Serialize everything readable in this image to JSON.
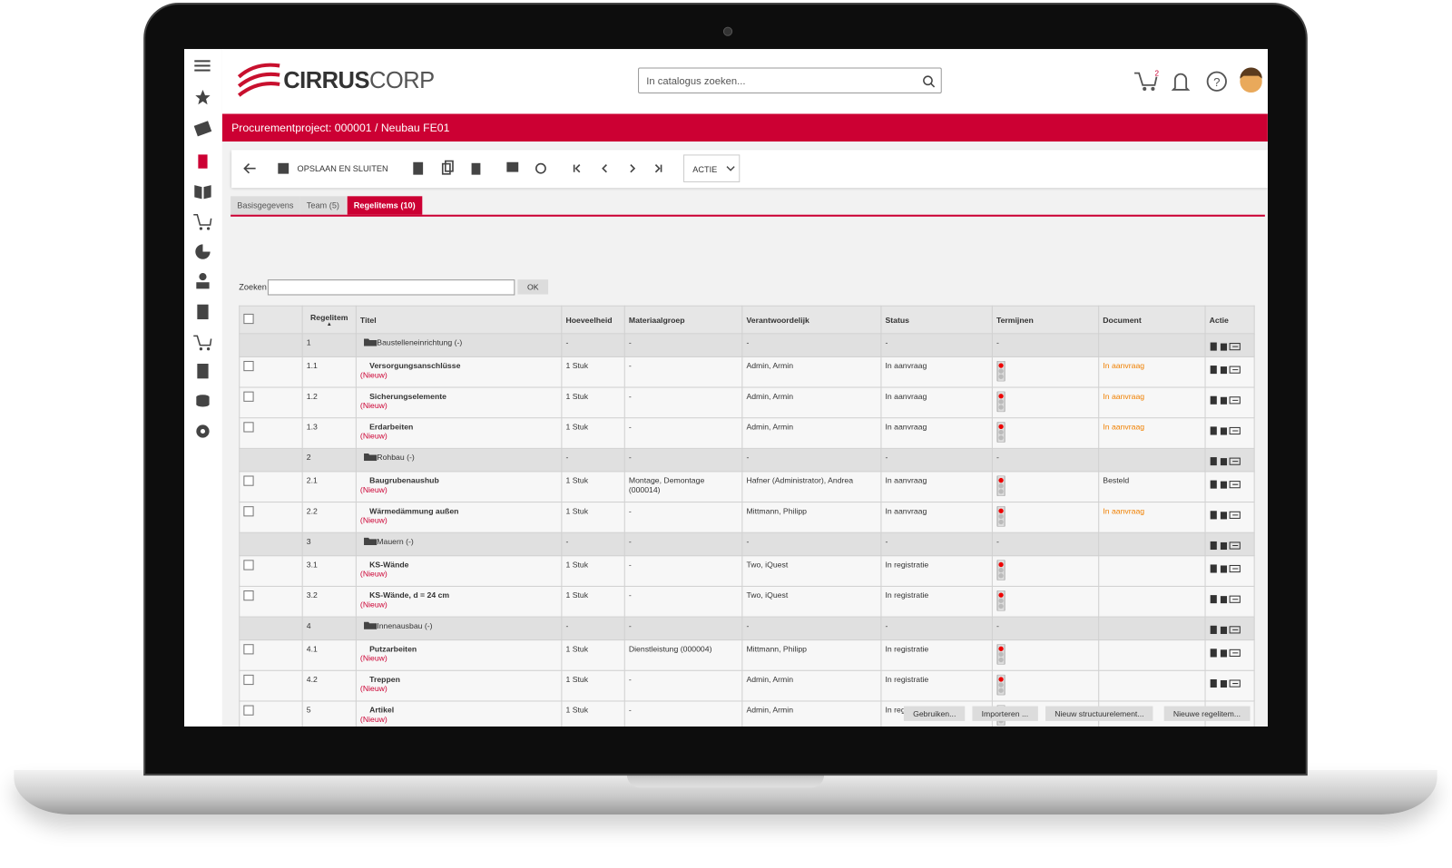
{
  "header": {
    "logo_main": "CIRRUS",
    "logo_sub": "CORP",
    "search_placeholder": "In catalogus zoeken...",
    "cart_count": "2"
  },
  "breadcrumb": "Procurementproject: 000001 / Neubau FE01",
  "toolbar": {
    "save": "OPSLAAN EN SLUITEN",
    "action": "ACTIE"
  },
  "tabs": [
    "Basisgegevens",
    "Team (5)",
    "Regelitems (10)"
  ],
  "search": {
    "label": "Zoeken",
    "button": "OK"
  },
  "table": {
    "columns": [
      "Regelitem",
      "Titel",
      "Hoeveelheid",
      "Materiaalgroep",
      "Verantwoordelijk",
      "Status",
      "Termijnen",
      "Document",
      "Actie"
    ],
    "rows": [
      {
        "id": "1",
        "title": "Baustelleneinrichtung (-)",
        "qty": "-",
        "group": "-",
        "resp": "-",
        "status": "-",
        "term": "-"
      },
      {
        "id": "1.1",
        "title": "Versorgungsanschlüsse",
        "note": "(Nieuw)",
        "qty": "1 Stuk",
        "group": "-",
        "resp": "Admin, Armin",
        "status": "In aanvraag",
        "doc": "In aanvraag"
      },
      {
        "id": "1.2",
        "title": "Sicherungselemente",
        "note": "(Nieuw)",
        "qty": "1 Stuk",
        "group": "-",
        "resp": "Admin, Armin",
        "status": "In aanvraag",
        "doc": "In aanvraag"
      },
      {
        "id": "1.3",
        "title": "Erdarbeiten",
        "note": "(Nieuw)",
        "qty": "1 Stuk",
        "group": "-",
        "resp": "Admin, Armin",
        "status": "In aanvraag",
        "doc": "In aanvraag"
      },
      {
        "id": "2",
        "title": "Rohbau (-)",
        "qty": "-",
        "group": "-",
        "resp": "-",
        "status": "-",
        "term": "-"
      },
      {
        "id": "2.1",
        "title": "Baugrubenaushub",
        "note": "(Nieuw)",
        "qty": "1 Stuk",
        "group": "Montage, Demontage (000014)",
        "resp": "Hafner (Administrator), Andrea",
        "status": "In aanvraag",
        "doc": "Besteld"
      },
      {
        "id": "2.2",
        "title": "Wärmedämmung außen",
        "note": "(Nieuw)",
        "qty": "1 Stuk",
        "group": "-",
        "resp": "Mittmann, Philipp",
        "status": "In aanvraag",
        "doc": "In aanvraag"
      },
      {
        "id": "3",
        "title": "Mauern (-)",
        "qty": "-",
        "group": "-",
        "resp": "-",
        "status": "-",
        "term": "-"
      },
      {
        "id": "3.1",
        "title": "KS-Wände",
        "note": "(Nieuw)",
        "qty": "1 Stuk",
        "group": "-",
        "resp": "Two, iQuest",
        "status": "In registratie"
      },
      {
        "id": "3.2",
        "title": "KS-Wände, d = 24 cm",
        "note": "(Nieuw)",
        "qty": "1 Stuk",
        "group": "-",
        "resp": "Two, iQuest",
        "status": "In registratie"
      },
      {
        "id": "4",
        "title": "Innenausbau (-)",
        "qty": "-",
        "group": "-",
        "resp": "-",
        "status": "-",
        "term": "-"
      },
      {
        "id": "4.1",
        "title": "Putzarbeiten",
        "note": "(Nieuw)",
        "qty": "1 Stuk",
        "group": "Dienstleistung (000004)",
        "resp": "Mittmann, Philipp",
        "status": "In registratie"
      },
      {
        "id": "4.2",
        "title": "Treppen",
        "note": "(Nieuw)",
        "qty": "1 Stuk",
        "group": "-",
        "resp": "Admin, Armin",
        "status": "In registratie"
      },
      {
        "id": "5",
        "title": "Artikel",
        "note": "(Nieuw)",
        "qty": "1 Stuk",
        "group": "-",
        "resp": "Admin, Armin",
        "status": "In registratie"
      }
    ]
  },
  "footer_buttons": [
    "Gebruiken...",
    "Importeren ...",
    "Nieuw structuurelement...",
    "Nieuwe regelitem..."
  ]
}
